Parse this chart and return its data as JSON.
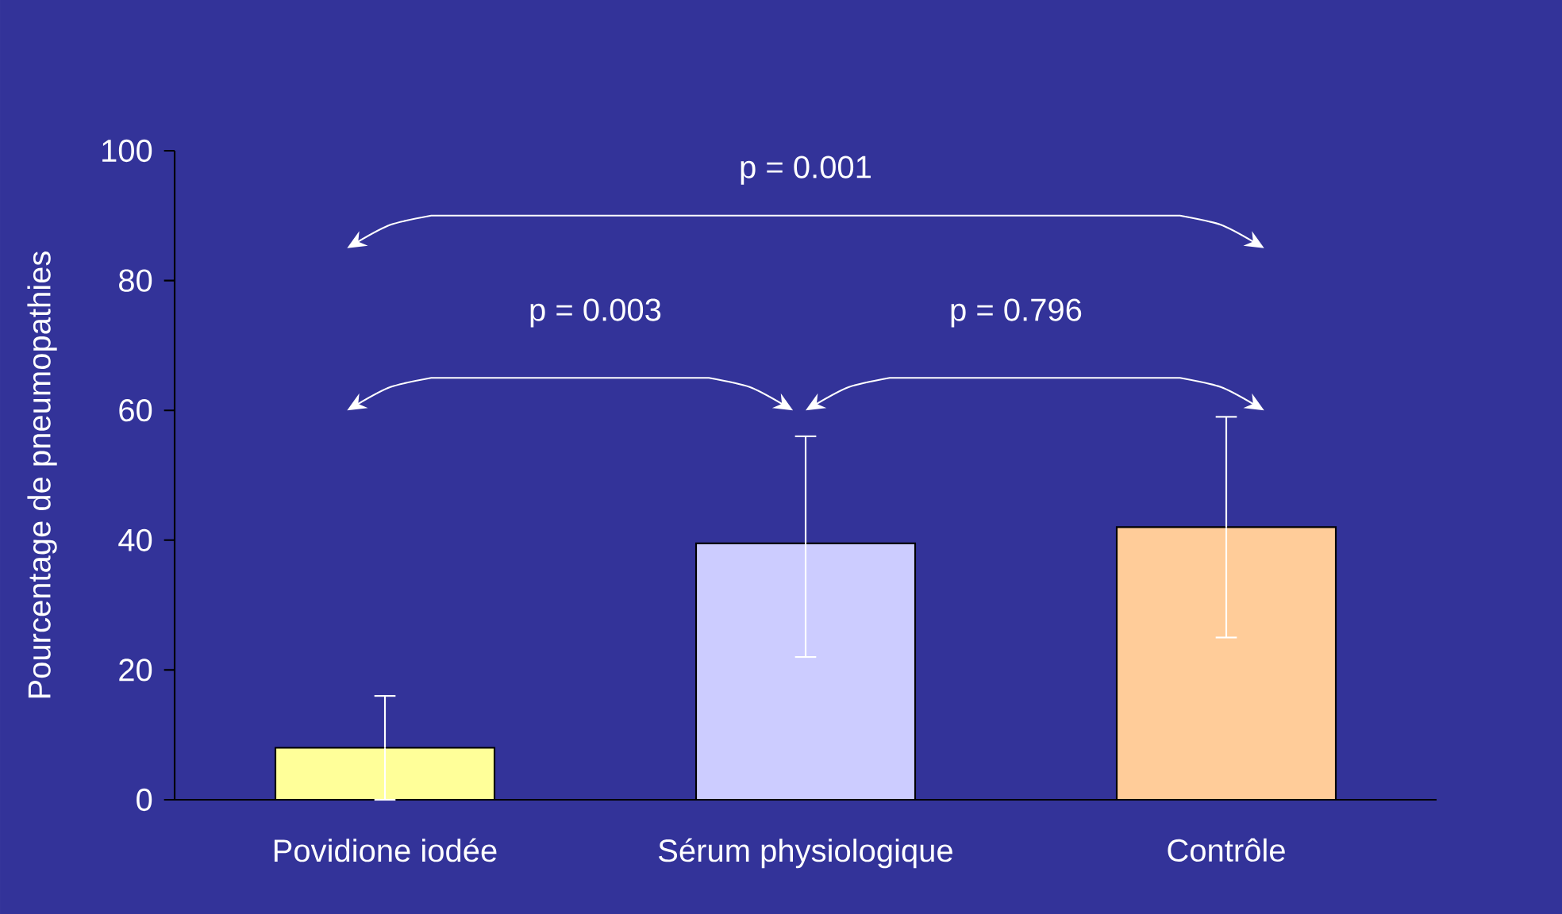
{
  "chart_data": {
    "type": "bar",
    "ylabel": "Pourcentage de pneumopathies",
    "categories": [
      "Povidione iodée",
      "Sérum physiologique",
      "Contrôle"
    ],
    "values": [
      8,
      39.5,
      42
    ],
    "colors": [
      "#ffff99",
      "#ccccff",
      "#ffcc99"
    ],
    "errors": [
      [
        0,
        16
      ],
      [
        22,
        56
      ],
      [
        25,
        59
      ]
    ],
    "ylim": [
      0,
      100
    ],
    "yticks": [
      0,
      20,
      40,
      60,
      80,
      100
    ],
    "annotations": [
      "p = 0.001",
      "p = 0.003",
      "p = 0.796"
    ]
  }
}
